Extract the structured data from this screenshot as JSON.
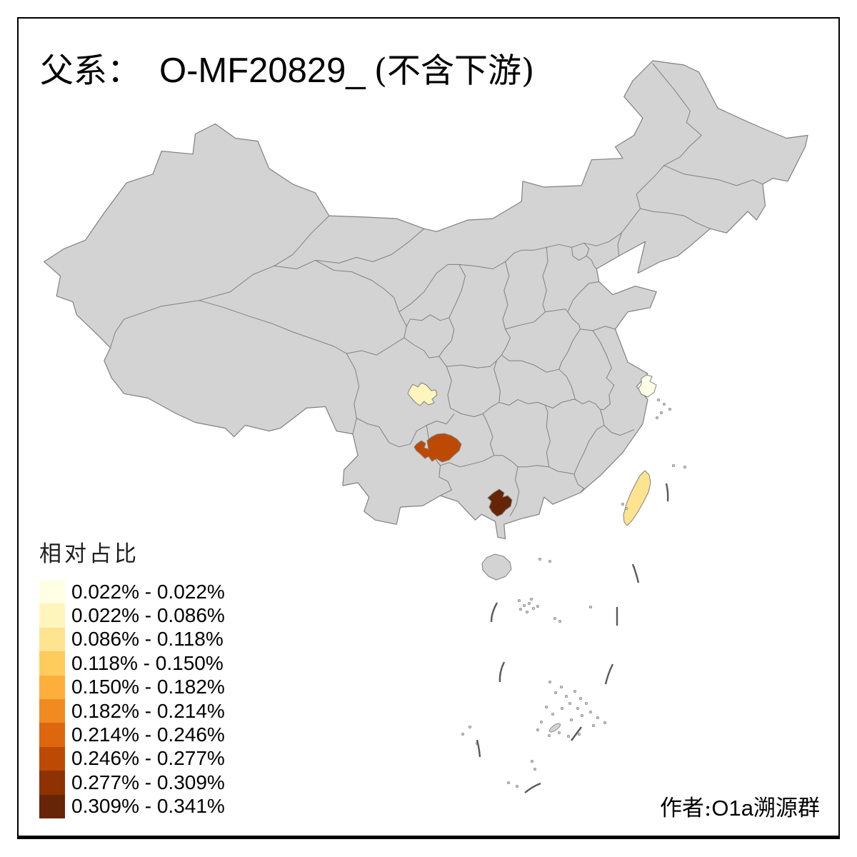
{
  "title": {
    "prefix": "父系：",
    "main": "O-MF20829_",
    "suffix": "(不含下游)"
  },
  "legend": {
    "title": "相对占比",
    "classes": [
      {
        "label": "0.022% - 0.022%",
        "color": "#FFFFE5"
      },
      {
        "label": "0.022% - 0.086%",
        "color": "#FEF5BD"
      },
      {
        "label": "0.086% - 0.118%",
        "color": "#FEE391"
      },
      {
        "label": "0.118% - 0.150%",
        "color": "#FDCC5D"
      },
      {
        "label": "0.150% - 0.182%",
        "color": "#FDAE3B"
      },
      {
        "label": "0.182% - 0.214%",
        "color": "#F28A22"
      },
      {
        "label": "0.214% - 0.246%",
        "color": "#DD660E"
      },
      {
        "label": "0.246% - 0.277%",
        "color": "#BC4A04"
      },
      {
        "label": "0.277% - 0.309%",
        "color": "#8E3103"
      },
      {
        "label": "0.309% - 0.341%",
        "color": "#662506"
      }
    ]
  },
  "attribution": {
    "prefix": "作者:",
    "latin": "O1a",
    "suffix": "溯源群"
  },
  "map": {
    "land_color": "#D3D3D3",
    "border_color": "#808080",
    "sea_color": "#FFFFFF",
    "dash_line_color": "#595959",
    "regions": [
      {
        "id": "region-shanghai",
        "class_index": 0
      },
      {
        "id": "region-chengdu-area",
        "class_index": 1
      },
      {
        "id": "region-taiwan",
        "class_index": 2
      },
      {
        "id": "region-guizhou-west",
        "class_index": 7
      },
      {
        "id": "region-guangxi-central",
        "class_index": 9
      }
    ]
  },
  "chart_data": {
    "type": "choropleth-map",
    "title": "父系： O-MF20829_ (不含下游)",
    "legend_title": "相对占比",
    "legend_position": "bottom-left",
    "class_breaks_percent": [
      0.022,
      0.022,
      0.086,
      0.118,
      0.15,
      0.182,
      0.214,
      0.246,
      0.277,
      0.309,
      0.341
    ],
    "palette": [
      "#FFFFE5",
      "#FEF5BD",
      "#FEE391",
      "#FDCC5D",
      "#FDAE3B",
      "#F28A22",
      "#DD660E",
      "#BC4A04",
      "#8E3103",
      "#662506"
    ],
    "highlighted_regions": [
      {
        "region": "shanghai",
        "value_range": "0.022% - 0.022%"
      },
      {
        "region": "chengdu-area",
        "value_range": "0.022% - 0.086%"
      },
      {
        "region": "taiwan",
        "value_range": "0.086% - 0.118%"
      },
      {
        "region": "guizhou-west",
        "value_range": "0.246% - 0.277%"
      },
      {
        "region": "guangxi-central",
        "value_range": "0.309% - 0.341%"
      }
    ],
    "base_region_note": "all other provinces uncolored gray"
  }
}
